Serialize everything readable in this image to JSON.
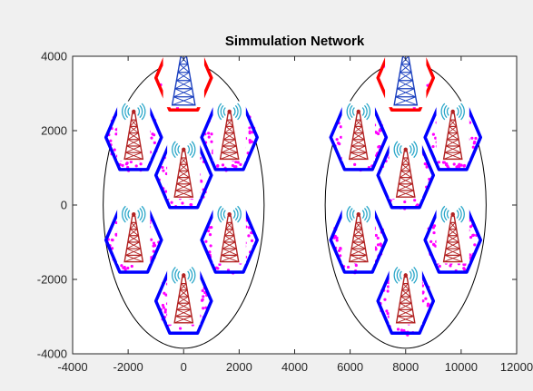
{
  "chart_data": {
    "type": "scatter",
    "title": "Simmulation Network",
    "xlabel": "",
    "ylabel": "",
    "xlim": [
      -4000,
      12000
    ],
    "ylim": [
      -4000,
      4000
    ],
    "x_ticks": [
      -4000,
      -2000,
      0,
      2000,
      4000,
      6000,
      8000,
      10000,
      12000
    ],
    "y_ticks": [
      -4000,
      -2000,
      0,
      2000,
      4000
    ],
    "grid": false,
    "legend": "none",
    "cell_radius": 1000,
    "clusters": [
      {
        "center": [
          0,
          0
        ],
        "boundary_radius": [
          2900,
          3850
        ],
        "serving_cell_center": [
          0,
          3420
        ],
        "cells": [
          {
            "center": [
              0,
              3420
            ],
            "highlight": true
          },
          {
            "center": [
              -1800,
              1820
            ],
            "highlight": false
          },
          {
            "center": [
              1650,
              1820
            ],
            "highlight": false
          },
          {
            "center": [
              0,
              800
            ],
            "highlight": false
          },
          {
            "center": [
              -1800,
              -940
            ],
            "highlight": false
          },
          {
            "center": [
              1650,
              -940
            ],
            "highlight": false
          },
          {
            "center": [
              0,
              -2580
            ],
            "highlight": false
          }
        ]
      },
      {
        "center": [
          8000,
          0
        ],
        "boundary_radius": [
          2900,
          3850
        ],
        "serving_cell_center": [
          8000,
          3420
        ],
        "cells": [
          {
            "center": [
              8000,
              3420
            ],
            "highlight": true
          },
          {
            "center": [
              6300,
              1820
            ],
            "highlight": false
          },
          {
            "center": [
              9700,
              1820
            ],
            "highlight": false
          },
          {
            "center": [
              8000,
              800
            ],
            "highlight": false
          },
          {
            "center": [
              6300,
              -940
            ],
            "highlight": false
          },
          {
            "center": [
              9700,
              -940
            ],
            "highlight": false
          },
          {
            "center": [
              8000,
              -2580
            ],
            "highlight": false
          }
        ]
      }
    ],
    "series": [
      {
        "marker": "dot",
        "color": "#ff00ff"
      }
    ],
    "colors": {
      "cell_border": "#0000ff",
      "serving_cell_border": "#ff0000",
      "boundary": "#000000",
      "user_points": "#ff00ff",
      "tower_red": "#b22222",
      "tower_blue": "#1a3fbf",
      "signal_waves": "#2aa7c9"
    }
  }
}
